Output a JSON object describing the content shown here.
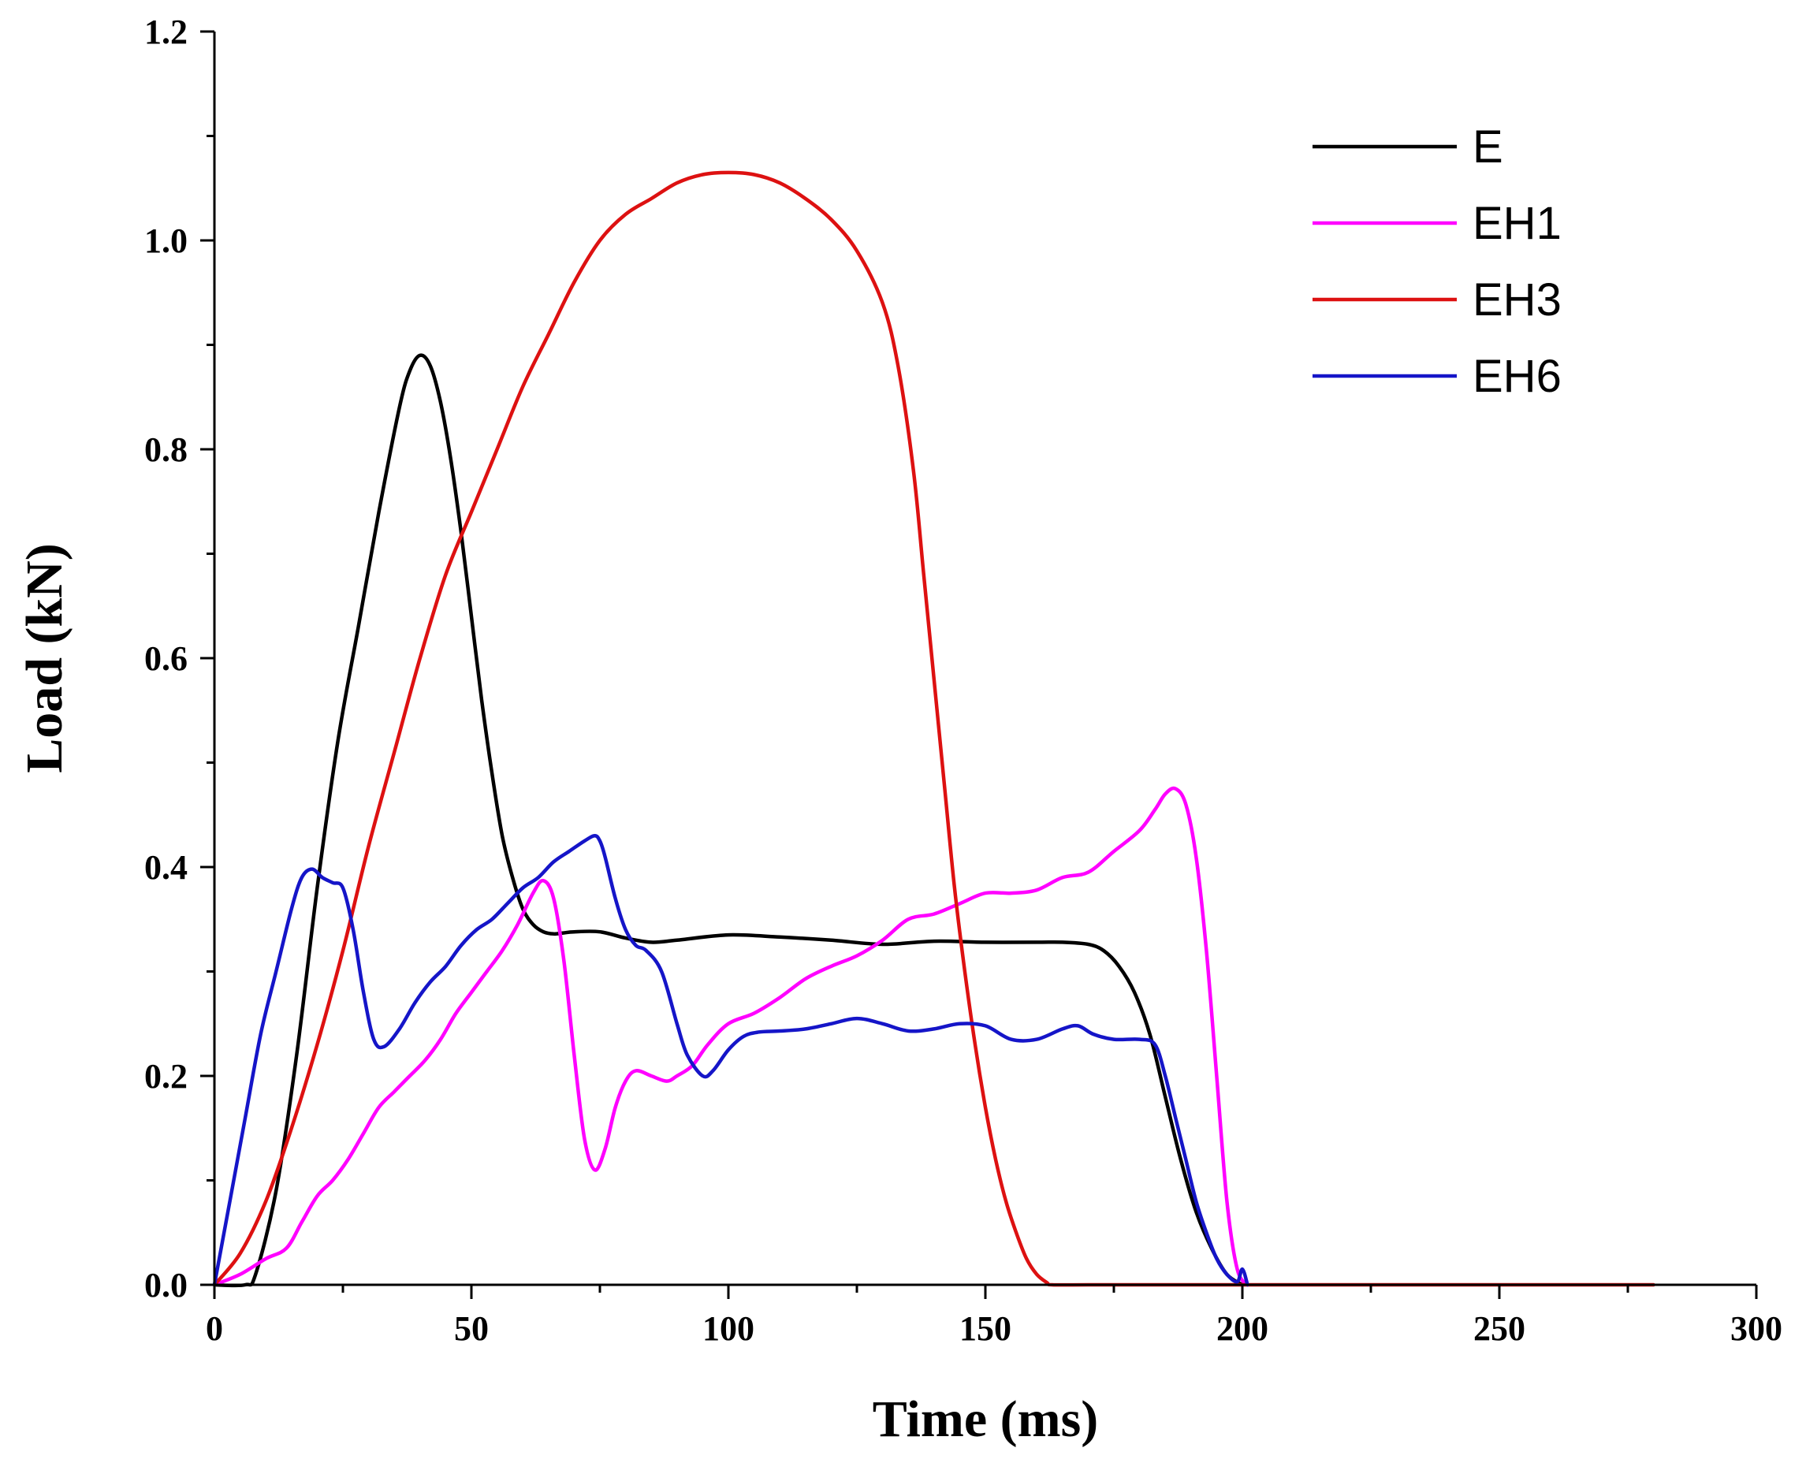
{
  "chart_data": {
    "type": "line",
    "title": "",
    "xlabel": "Time (ms)",
    "ylabel": "Load (kN)",
    "xlim": [
      0,
      300
    ],
    "ylim": [
      0,
      1.2
    ],
    "xticks": [
      0,
      50,
      100,
      150,
      200,
      250,
      300
    ],
    "xtick_labels": [
      "0",
      "50",
      "100",
      "150",
      "200",
      "250",
      "300"
    ],
    "yticks": [
      0,
      0.2,
      0.4,
      0.6,
      0.8,
      1.0,
      1.2
    ],
    "ytick_labels": [
      "0.0",
      "0.2",
      "0.4",
      "0.6",
      "0.8",
      "1.0",
      "1.2"
    ],
    "grid": false,
    "legend_position": "top-right",
    "series": [
      {
        "name": "E",
        "color": "#000000",
        "x": [
          0,
          6,
          8,
          12,
          16,
          20,
          24,
          28,
          32,
          36,
          38,
          40,
          42,
          44,
          46,
          48,
          50,
          52,
          54,
          56,
          58,
          60,
          62,
          64,
          66,
          68,
          70,
          75,
          80,
          85,
          90,
          100,
          110,
          120,
          130,
          140,
          150,
          160,
          165,
          170,
          173,
          176,
          179,
          182,
          185,
          188,
          191,
          194,
          197,
          200
        ],
        "y": [
          0,
          0,
          0.01,
          0.09,
          0.22,
          0.38,
          0.52,
          0.63,
          0.74,
          0.84,
          0.875,
          0.89,
          0.88,
          0.845,
          0.79,
          0.72,
          0.64,
          0.56,
          0.49,
          0.43,
          0.39,
          0.36,
          0.345,
          0.338,
          0.336,
          0.337,
          0.338,
          0.338,
          0.332,
          0.328,
          0.33,
          0.335,
          0.333,
          0.33,
          0.326,
          0.329,
          0.328,
          0.328,
          0.328,
          0.326,
          0.32,
          0.305,
          0.28,
          0.24,
          0.18,
          0.12,
          0.07,
          0.035,
          0.01,
          0
        ]
      },
      {
        "name": "EH1",
        "color": "#ff00ff",
        "x": [
          0,
          5,
          10,
          14,
          17,
          20,
          23,
          26,
          29,
          32,
          35,
          38,
          41,
          44,
          47,
          50,
          53,
          56,
          59,
          62,
          64,
          66,
          68,
          70,
          72,
          74,
          76,
          78,
          80,
          82,
          85,
          88,
          90,
          93,
          96,
          100,
          105,
          110,
          115,
          120,
          125,
          130,
          135,
          140,
          145,
          150,
          155,
          160,
          165,
          170,
          175,
          180,
          183,
          185,
          187,
          189,
          191,
          193,
          195,
          197,
          199,
          201
        ],
        "y": [
          0,
          0.01,
          0.025,
          0.035,
          0.06,
          0.085,
          0.1,
          0.12,
          0.145,
          0.17,
          0.185,
          0.2,
          0.215,
          0.235,
          0.26,
          0.28,
          0.3,
          0.32,
          0.345,
          0.375,
          0.387,
          0.37,
          0.31,
          0.22,
          0.14,
          0.11,
          0.13,
          0.17,
          0.195,
          0.205,
          0.2,
          0.195,
          0.2,
          0.21,
          0.23,
          0.25,
          0.26,
          0.275,
          0.293,
          0.305,
          0.315,
          0.33,
          0.35,
          0.355,
          0.365,
          0.375,
          0.375,
          0.378,
          0.39,
          0.395,
          0.415,
          0.435,
          0.455,
          0.47,
          0.475,
          0.46,
          0.41,
          0.32,
          0.2,
          0.08,
          0.015,
          0
        ]
      },
      {
        "name": "EH3",
        "color": "#dd1111",
        "x": [
          0,
          5,
          10,
          15,
          20,
          25,
          30,
          35,
          40,
          45,
          50,
          55,
          60,
          65,
          70,
          75,
          80,
          85,
          90,
          95,
          100,
          105,
          110,
          115,
          120,
          125,
          130,
          133,
          136,
          138,
          140,
          142,
          144,
          146,
          148,
          150,
          152,
          154,
          156,
          158,
          160,
          162,
          163,
          170,
          180,
          200,
          280
        ],
        "y": [
          0,
          0.03,
          0.08,
          0.15,
          0.23,
          0.32,
          0.42,
          0.51,
          0.6,
          0.68,
          0.74,
          0.8,
          0.86,
          0.91,
          0.96,
          1.0,
          1.025,
          1.04,
          1.055,
          1.063,
          1.065,
          1.063,
          1.055,
          1.04,
          1.02,
          0.99,
          0.94,
          0.88,
          0.78,
          0.68,
          0.58,
          0.48,
          0.38,
          0.3,
          0.23,
          0.17,
          0.12,
          0.08,
          0.05,
          0.025,
          0.01,
          0.002,
          0,
          0,
          0,
          0,
          0
        ]
      },
      {
        "name": "EH6",
        "color": "#1515c8",
        "x": [
          0,
          3,
          6,
          9,
          12,
          15,
          17,
          19,
          21,
          23,
          25,
          27,
          29,
          31,
          33,
          36,
          39,
          42,
          45,
          48,
          51,
          54,
          57,
          60,
          63,
          66,
          69,
          72,
          74,
          75,
          76,
          78,
          80,
          82,
          84,
          87,
          90,
          92,
          95,
          97,
          100,
          103,
          106,
          110,
          115,
          120,
          125,
          130,
          135,
          140,
          145,
          150,
          155,
          160,
          165,
          168,
          171,
          175,
          180,
          183,
          185,
          187,
          189,
          191,
          193,
          195,
          197,
          199,
          200,
          201
        ],
        "y": [
          0,
          0.08,
          0.16,
          0.24,
          0.3,
          0.36,
          0.39,
          0.398,
          0.39,
          0.385,
          0.38,
          0.34,
          0.28,
          0.235,
          0.228,
          0.245,
          0.27,
          0.29,
          0.305,
          0.325,
          0.34,
          0.35,
          0.365,
          0.38,
          0.39,
          0.405,
          0.415,
          0.425,
          0.43,
          0.425,
          0.41,
          0.37,
          0.34,
          0.325,
          0.32,
          0.3,
          0.25,
          0.22,
          0.2,
          0.205,
          0.225,
          0.238,
          0.242,
          0.243,
          0.245,
          0.25,
          0.255,
          0.25,
          0.243,
          0.245,
          0.25,
          0.248,
          0.235,
          0.235,
          0.245,
          0.248,
          0.24,
          0.235,
          0.235,
          0.23,
          0.2,
          0.16,
          0.12,
          0.08,
          0.05,
          0.025,
          0.01,
          0.003,
          0.015,
          0
        ]
      }
    ]
  }
}
